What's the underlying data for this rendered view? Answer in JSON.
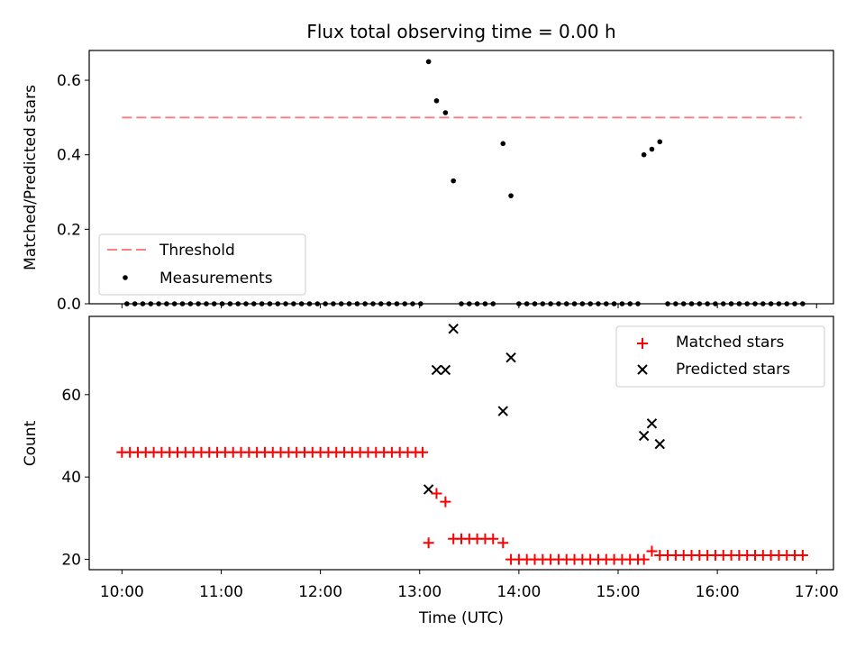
{
  "chart_data": [
    {
      "type": "scatter",
      "title": "Flux total observing time = 0.00 h",
      "xlabel": "",
      "ylabel": "Matched/Predicted stars",
      "ylim": [
        0,
        0.68
      ],
      "y_ticks": [
        "0.0",
        "0.2",
        "0.4",
        "0.6"
      ],
      "legend": {
        "position": "lower-left",
        "threshold_label": "Threshold",
        "measurements_label": "Measurements"
      },
      "threshold": {
        "value": 0.5,
        "x_start": 10.0,
        "x_end": 16.85,
        "color": "#ff7f7f"
      },
      "series": [
        {
          "name": "Measurements",
          "color": "#000000",
          "points": [
            [
              10.05,
              0
            ],
            [
              10.13,
              0
            ],
            [
              10.21,
              0
            ],
            [
              10.29,
              0
            ],
            [
              10.37,
              0
            ],
            [
              10.45,
              0
            ],
            [
              10.53,
              0
            ],
            [
              10.61,
              0
            ],
            [
              10.69,
              0
            ],
            [
              10.77,
              0
            ],
            [
              10.85,
              0
            ],
            [
              10.93,
              0
            ],
            [
              11.01,
              0
            ],
            [
              11.09,
              0
            ],
            [
              11.17,
              0
            ],
            [
              11.25,
              0
            ],
            [
              11.33,
              0
            ],
            [
              11.41,
              0
            ],
            [
              11.49,
              0
            ],
            [
              11.57,
              0
            ],
            [
              11.65,
              0
            ],
            [
              11.73,
              0
            ],
            [
              11.81,
              0
            ],
            [
              11.89,
              0
            ],
            [
              11.97,
              0
            ],
            [
              12.05,
              0
            ],
            [
              12.13,
              0
            ],
            [
              12.21,
              0
            ],
            [
              12.29,
              0
            ],
            [
              12.37,
              0
            ],
            [
              12.45,
              0
            ],
            [
              12.53,
              0
            ],
            [
              12.61,
              0
            ],
            [
              12.69,
              0
            ],
            [
              12.77,
              0
            ],
            [
              12.85,
              0
            ],
            [
              12.93,
              0
            ],
            [
              13.01,
              0
            ],
            [
              13.09,
              0.65
            ],
            [
              13.17,
              0.545
            ],
            [
              13.26,
              0.513
            ],
            [
              13.34,
              0.33
            ],
            [
              13.42,
              0
            ],
            [
              13.5,
              0
            ],
            [
              13.58,
              0
            ],
            [
              13.66,
              0
            ],
            [
              13.74,
              0
            ],
            [
              13.84,
              0.43
            ],
            [
              13.92,
              0.29
            ],
            [
              14.0,
              0
            ],
            [
              14.08,
              0
            ],
            [
              14.16,
              0
            ],
            [
              14.24,
              0
            ],
            [
              14.32,
              0
            ],
            [
              14.4,
              0
            ],
            [
              14.48,
              0
            ],
            [
              14.56,
              0
            ],
            [
              14.64,
              0
            ],
            [
              14.72,
              0
            ],
            [
              14.8,
              0
            ],
            [
              14.88,
              0
            ],
            [
              14.96,
              0
            ],
            [
              15.04,
              0
            ],
            [
              15.12,
              0
            ],
            [
              15.2,
              0
            ],
            [
              15.26,
              0.4
            ],
            [
              15.34,
              0.415
            ],
            [
              15.42,
              0.435
            ],
            [
              15.5,
              0
            ],
            [
              15.58,
              0
            ],
            [
              15.66,
              0
            ],
            [
              15.74,
              0
            ],
            [
              15.82,
              0
            ],
            [
              15.9,
              0
            ],
            [
              15.98,
              0
            ],
            [
              16.06,
              0
            ],
            [
              16.14,
              0
            ],
            [
              16.22,
              0
            ],
            [
              16.3,
              0
            ],
            [
              16.38,
              0
            ],
            [
              16.46,
              0
            ],
            [
              16.54,
              0
            ],
            [
              16.62,
              0
            ],
            [
              16.7,
              0
            ],
            [
              16.78,
              0
            ],
            [
              16.86,
              0
            ]
          ]
        }
      ]
    },
    {
      "type": "scatter",
      "title": "",
      "xlabel": "Time (UTC)",
      "ylabel": "Count",
      "ylim": [
        17.5,
        79
      ],
      "y_ticks": [
        "20",
        "40",
        "60"
      ],
      "xlim": [
        9.67,
        17.17
      ],
      "x_ticks": [
        "10:00",
        "11:00",
        "12:00",
        "13:00",
        "14:00",
        "15:00",
        "16:00",
        "17:00"
      ],
      "legend": {
        "position": "upper-right",
        "matched_label": "Matched stars",
        "predicted_label": "Predicted stars"
      },
      "series": [
        {
          "name": "Matched stars",
          "color": "#ff0000",
          "marker": "+",
          "points": [
            [
              10.0,
              46
            ],
            [
              10.08,
              46
            ],
            [
              10.16,
              46
            ],
            [
              10.24,
              46
            ],
            [
              10.32,
              46
            ],
            [
              10.4,
              46
            ],
            [
              10.48,
              46
            ],
            [
              10.56,
              46
            ],
            [
              10.64,
              46
            ],
            [
              10.72,
              46
            ],
            [
              10.8,
              46
            ],
            [
              10.88,
              46
            ],
            [
              10.96,
              46
            ],
            [
              11.04,
              46
            ],
            [
              11.12,
              46
            ],
            [
              11.2,
              46
            ],
            [
              11.28,
              46
            ],
            [
              11.36,
              46
            ],
            [
              11.44,
              46
            ],
            [
              11.52,
              46
            ],
            [
              11.6,
              46
            ],
            [
              11.68,
              46
            ],
            [
              11.76,
              46
            ],
            [
              11.84,
              46
            ],
            [
              11.92,
              46
            ],
            [
              12.0,
              46
            ],
            [
              12.08,
              46
            ],
            [
              12.16,
              46
            ],
            [
              12.24,
              46
            ],
            [
              12.32,
              46
            ],
            [
              12.4,
              46
            ],
            [
              12.48,
              46
            ],
            [
              12.56,
              46
            ],
            [
              12.64,
              46
            ],
            [
              12.72,
              46
            ],
            [
              12.8,
              46
            ],
            [
              12.88,
              46
            ],
            [
              12.96,
              46
            ],
            [
              13.03,
              46
            ],
            [
              13.09,
              24
            ],
            [
              13.17,
              36
            ],
            [
              13.26,
              34
            ],
            [
              13.34,
              25
            ],
            [
              13.42,
              25
            ],
            [
              13.5,
              25
            ],
            [
              13.58,
              25
            ],
            [
              13.66,
              25
            ],
            [
              13.74,
              25
            ],
            [
              13.84,
              24
            ],
            [
              13.92,
              20
            ],
            [
              14.0,
              20
            ],
            [
              14.08,
              20
            ],
            [
              14.16,
              20
            ],
            [
              14.24,
              20
            ],
            [
              14.32,
              20
            ],
            [
              14.4,
              20
            ],
            [
              14.48,
              20
            ],
            [
              14.56,
              20
            ],
            [
              14.64,
              20
            ],
            [
              14.72,
              20
            ],
            [
              14.8,
              20
            ],
            [
              14.88,
              20
            ],
            [
              14.96,
              20
            ],
            [
              15.04,
              20
            ],
            [
              15.12,
              20
            ],
            [
              15.2,
              20
            ],
            [
              15.26,
              20
            ],
            [
              15.34,
              22
            ],
            [
              15.42,
              21
            ],
            [
              15.5,
              21
            ],
            [
              15.58,
              21
            ],
            [
              15.66,
              21
            ],
            [
              15.74,
              21
            ],
            [
              15.82,
              21
            ],
            [
              15.9,
              21
            ],
            [
              15.98,
              21
            ],
            [
              16.06,
              21
            ],
            [
              16.14,
              21
            ],
            [
              16.22,
              21
            ],
            [
              16.3,
              21
            ],
            [
              16.38,
              21
            ],
            [
              16.46,
              21
            ],
            [
              16.54,
              21
            ],
            [
              16.62,
              21
            ],
            [
              16.7,
              21
            ],
            [
              16.78,
              21
            ],
            [
              16.86,
              21
            ]
          ]
        },
        {
          "name": "Predicted stars",
          "color": "#000000",
          "marker": "x",
          "points": [
            [
              13.09,
              37
            ],
            [
              13.17,
              66
            ],
            [
              13.26,
              66
            ],
            [
              13.34,
              76
            ],
            [
              13.84,
              56
            ],
            [
              13.92,
              69
            ],
            [
              15.26,
              50
            ],
            [
              15.34,
              53
            ],
            [
              15.42,
              48
            ]
          ]
        }
      ]
    }
  ]
}
